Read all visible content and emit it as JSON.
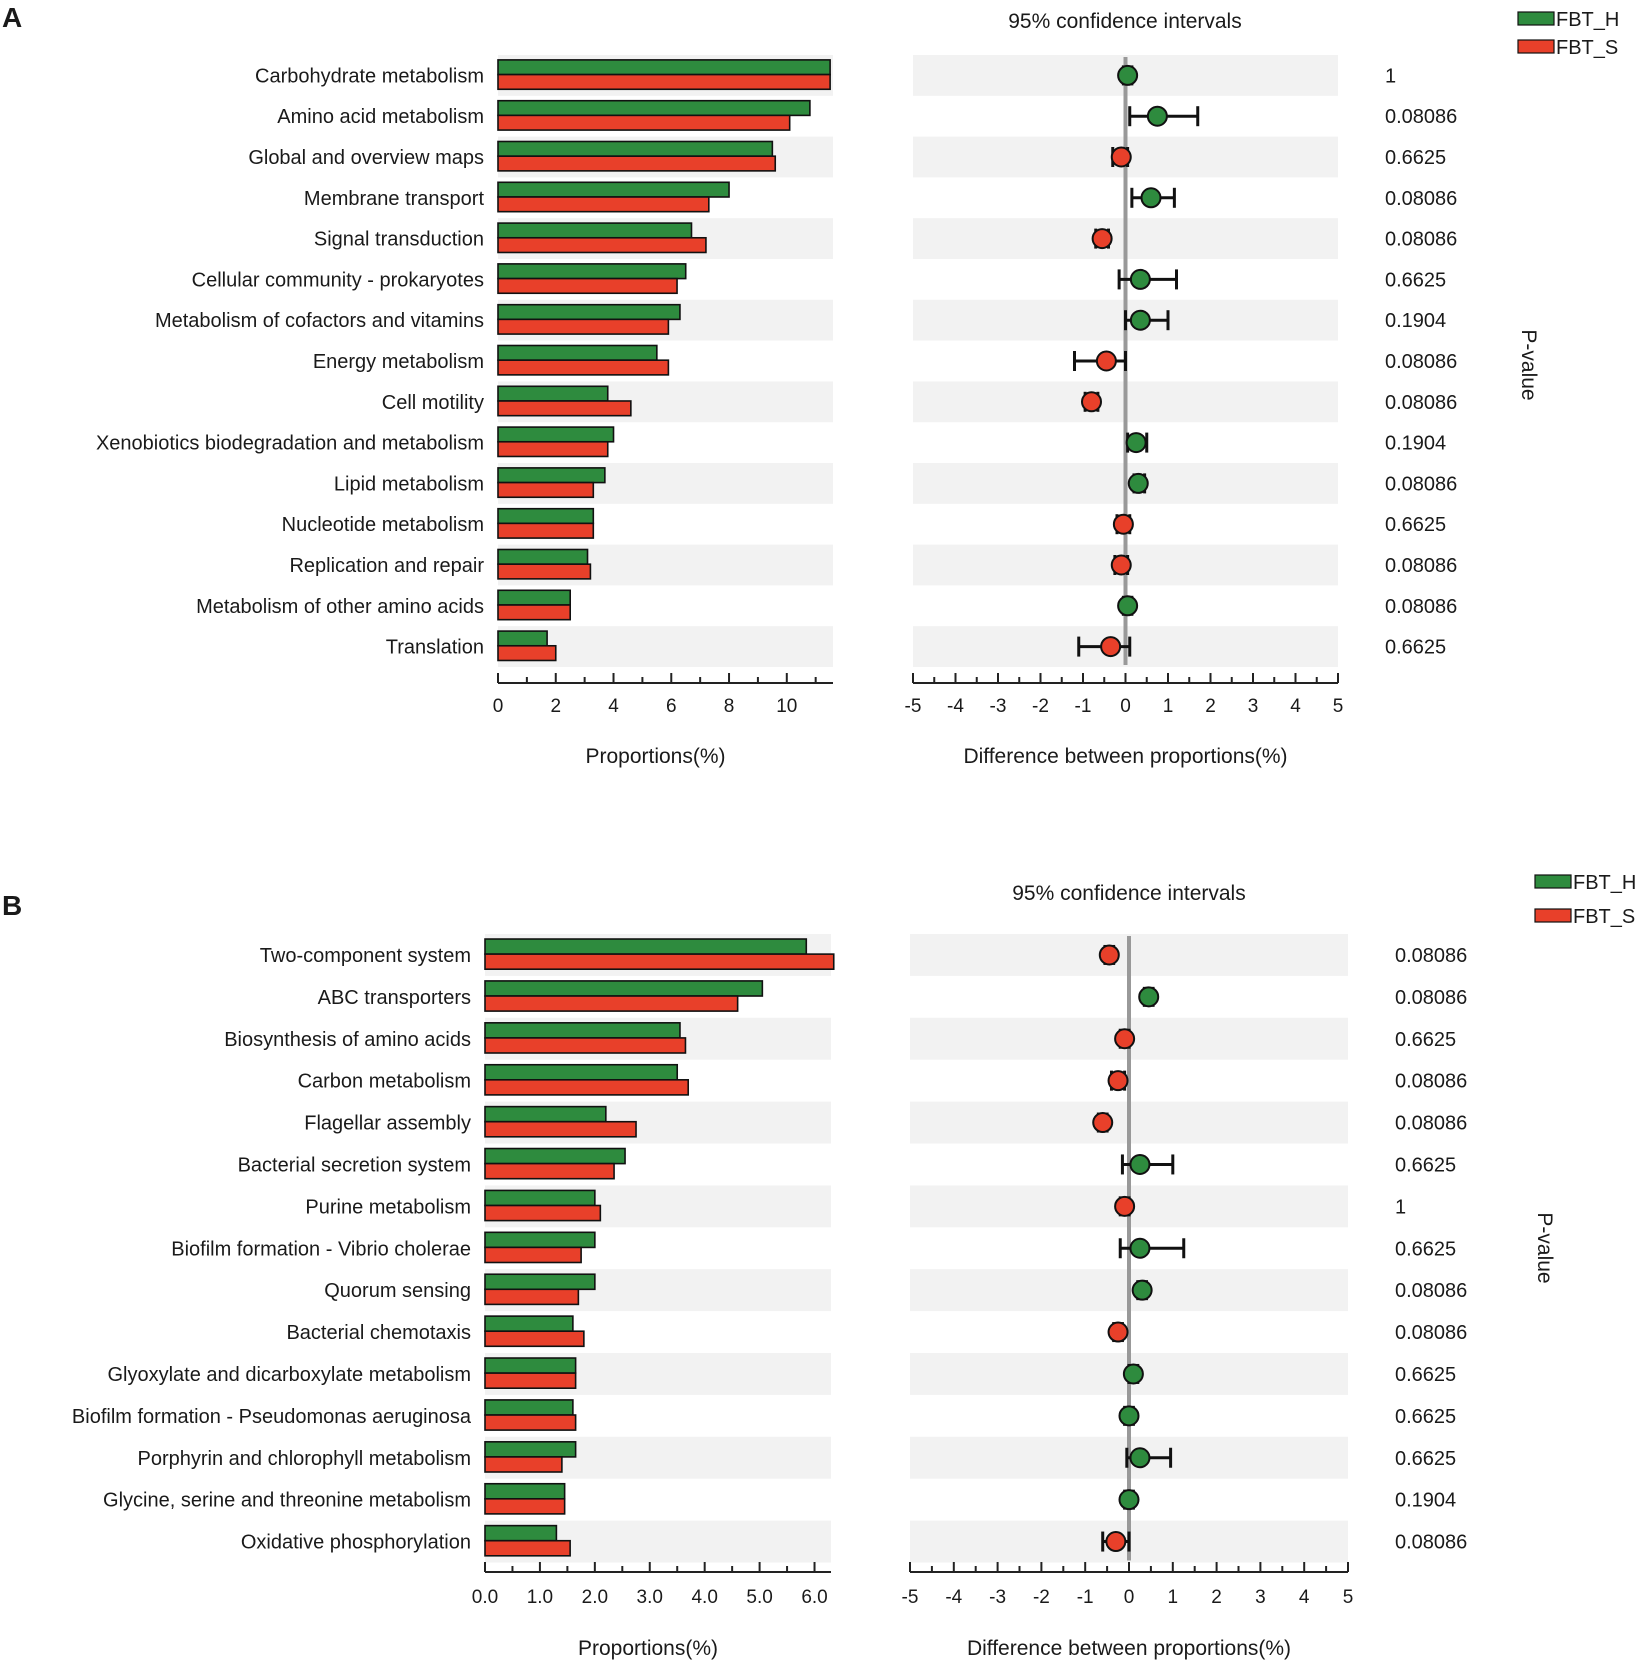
{
  "colors": {
    "group1": "#2e8b3e",
    "group2": "#e8402a",
    "stripe": "#f2f2f2",
    "axis": "#222222",
    "zero_line": "#999999"
  },
  "legend": [
    "FBT_H",
    "FBT_S"
  ],
  "chart_data": [
    {
      "panel": "A",
      "type": "bar",
      "title": "95% confidence intervals",
      "xlabel_left": "Proportions(%)",
      "xlabel_right": "Difference between proportions(%)",
      "pvalue_label": "P-value",
      "left_ticks": [
        "0",
        "2",
        "4",
        "6",
        "8",
        "10"
      ],
      "left_xlim": [
        0,
        11.6
      ],
      "right_ticks": [
        "-5",
        "-4",
        "-3",
        "-2",
        "-1",
        "0",
        "1",
        "2",
        "3",
        "4",
        "5"
      ],
      "right_xlim": [
        -5,
        5
      ],
      "categories": [
        "Carbohydrate metabolism",
        "Amino acid metabolism",
        "Global and overview maps",
        "Membrane transport",
        "Signal transduction",
        "Cellular community - prokaryotes",
        "Metabolism of cofactors and vitamins",
        "Energy metabolism",
        "Cell motility",
        "Xenobiotics biodegradation and metabolism",
        "Lipid metabolism",
        "Nucleotide metabolism",
        "Replication and repair",
        "Metabolism of other amino acids",
        "Translation"
      ],
      "series": [
        {
          "name": "FBT_H",
          "values": [
            11.5,
            10.8,
            9.5,
            8.0,
            6.7,
            6.5,
            6.3,
            5.5,
            3.8,
            4.0,
            3.7,
            3.3,
            3.1,
            2.5,
            1.7
          ]
        },
        {
          "name": "FBT_S",
          "values": [
            11.5,
            10.1,
            9.6,
            7.3,
            7.2,
            6.2,
            5.9,
            5.9,
            4.6,
            3.8,
            3.3,
            3.3,
            3.2,
            2.5,
            2.0
          ]
        }
      ],
      "difference": [
        0.05,
        0.75,
        -0.1,
        0.6,
        -0.55,
        0.35,
        0.35,
        -0.45,
        -0.8,
        0.25,
        0.3,
        -0.05,
        -0.1,
        0.05,
        -0.35
      ],
      "ci_low": [
        -0.05,
        0.1,
        -0.3,
        0.15,
        -0.7,
        -0.15,
        0.0,
        -1.2,
        -0.95,
        0.05,
        0.2,
        -0.2,
        -0.25,
        -0.05,
        -1.1
      ],
      "ci_high": [
        0.15,
        1.7,
        0.05,
        1.15,
        -0.4,
        1.2,
        1.0,
        0.0,
        -0.65,
        0.5,
        0.45,
        0.1,
        0.05,
        0.15,
        0.1
      ],
      "pvalues": [
        "1",
        "0.08086",
        "0.6625",
        "0.08086",
        "0.08086",
        "0.6625",
        "0.1904",
        "0.08086",
        "0.08086",
        "0.1904",
        "0.08086",
        "0.6625",
        "0.08086",
        "0.08086",
        "0.6625"
      ]
    },
    {
      "panel": "B",
      "type": "bar",
      "title": "95% confidence intervals",
      "xlabel_left": "Proportions(%)",
      "xlabel_right": "Difference between proportions(%)",
      "pvalue_label": "P-value",
      "left_ticks": [
        "0.0",
        "1.0",
        "2.0",
        "3.0",
        "4.0",
        "5.0",
        "6.0"
      ],
      "left_xlim": [
        0,
        6.3
      ],
      "right_ticks": [
        "-5",
        "-4",
        "-3",
        "-2",
        "-1",
        "0",
        "1",
        "2",
        "3",
        "4",
        "5"
      ],
      "right_xlim": [
        -5,
        5
      ],
      "categories": [
        "Two-component system",
        "ABC transporters",
        "Biosynthesis of amino acids",
        "Carbon metabolism",
        "Flagellar assembly",
        "Bacterial secretion system",
        "Purine metabolism",
        "Biofilm formation - Vibrio cholerae",
        "Quorum sensing",
        "Bacterial chemotaxis",
        "Glyoxylate and dicarboxylate metabolism",
        "Biofilm formation - Pseudomonas aeruginosa",
        "Porphyrin and chlorophyll metabolism",
        "Glycine, serine and threonine metabolism",
        "Oxidative phosphorylation"
      ],
      "series": [
        {
          "name": "FBT_H",
          "values": [
            5.85,
            5.05,
            3.55,
            3.5,
            2.2,
            2.55,
            2.0,
            2.0,
            2.0,
            1.6,
            1.65,
            1.6,
            1.65,
            1.45,
            1.3
          ]
        },
        {
          "name": "FBT_S",
          "values": [
            6.35,
            4.6,
            3.65,
            3.7,
            2.75,
            2.35,
            2.1,
            1.75,
            1.7,
            1.8,
            1.65,
            1.65,
            1.4,
            1.45,
            1.55
          ]
        }
      ],
      "difference": [
        -0.45,
        0.45,
        -0.1,
        -0.25,
        -0.6,
        0.25,
        -0.1,
        0.25,
        0.3,
        -0.25,
        0.1,
        0.0,
        0.25,
        0.0,
        -0.3
      ],
      "ci_low": [
        -0.55,
        0.35,
        -0.2,
        -0.4,
        -0.7,
        -0.15,
        -0.2,
        -0.2,
        0.2,
        -0.35,
        0.0,
        -0.1,
        -0.05,
        -0.1,
        -0.6
      ],
      "ci_high": [
        -0.35,
        0.55,
        0.0,
        -0.1,
        -0.5,
        1.0,
        0.0,
        1.25,
        0.4,
        -0.15,
        0.2,
        0.1,
        0.95,
        0.1,
        0.0
      ],
      "pvalues": [
        "0.08086",
        "0.08086",
        "0.6625",
        "0.08086",
        "0.08086",
        "0.6625",
        "1",
        "0.6625",
        "0.08086",
        "0.08086",
        "0.6625",
        "0.6625",
        "0.6625",
        "0.1904",
        "0.08086"
      ]
    }
  ]
}
